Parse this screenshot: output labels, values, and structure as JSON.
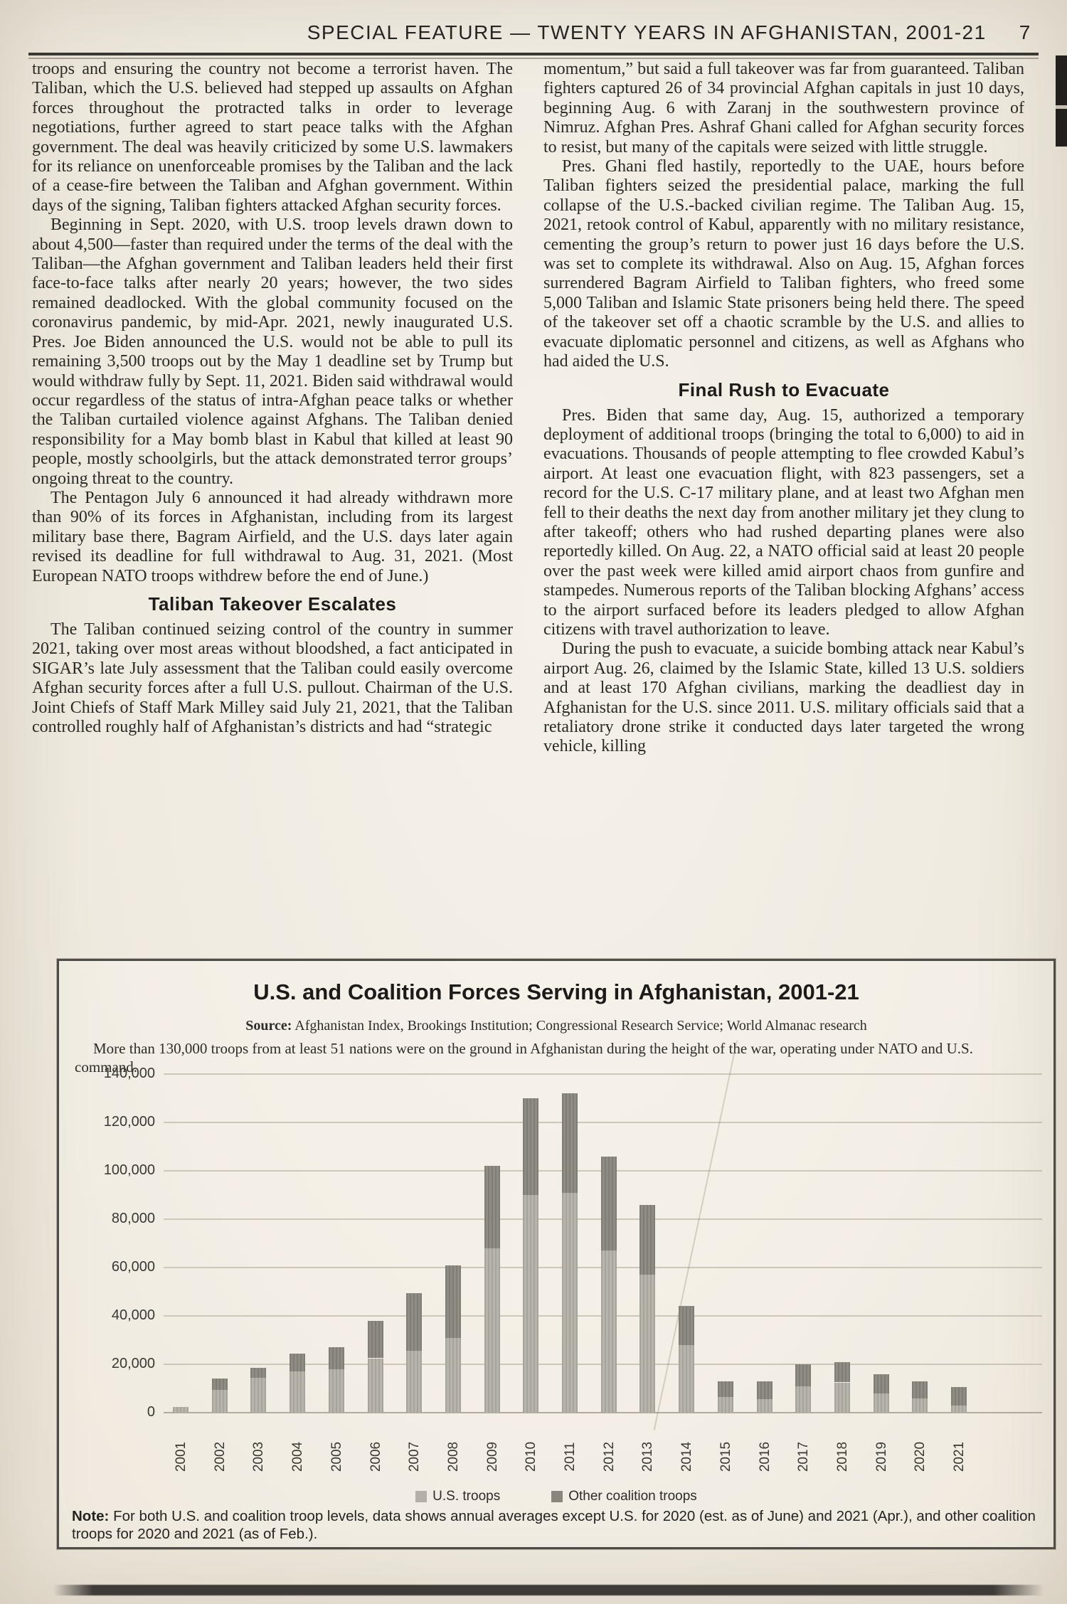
{
  "header": {
    "title": "SPECIAL FEATURE — TWENTY YEARS IN AFGHANISTAN, 2001-21",
    "page_number": "7"
  },
  "columns": {
    "left": {
      "paragraphs": [
        "troops and ensuring the country not become a terrorist haven. The Taliban, which the U.S. believed had stepped up assaults on Afghan forces throughout the protracted talks in order to leverage negotiations, further agreed to start peace talks with the Afghan government. The deal was heavily criticized by some U.S. lawmakers for its reliance on unenforceable promises by the Taliban and the lack of a cease-fire between the Taliban and Afghan government. Within days of the signing, Taliban fighters attacked Afghan security forces.",
        "Beginning in Sept. 2020, with U.S. troop levels drawn down to about 4,500—faster than required under the terms of the deal with the Taliban—the Afghan government and Taliban leaders held their first face-to-face talks after nearly 20 years; however, the two sides remained deadlocked. With the global community focused on the coronavirus pandemic, by mid-Apr. 2021, newly inaugurated U.S. Pres. Joe Biden announced the U.S. would not be able to pull its remaining 3,500 troops out by the May 1 deadline set by Trump but would withdraw fully by Sept. 11, 2021. Biden said withdrawal would occur regardless of the status of intra-Afghan peace talks or whether the Taliban curtailed violence against Afghans. The Taliban denied responsibility for a May bomb blast in Kabul that killed at least 90 people, mostly schoolgirls, but the attack demonstrated terror groups’ ongoing threat to the country.",
        "The Pentagon July 6 announced it had already withdrawn more than 90% of its forces in Afghanistan, including from its largest military base there, Bagram Airfield, and the U.S. days later again revised its deadline for full withdrawal to Aug. 31, 2021. (Most European NATO troops withdrew before the end of June.)",
        "The Taliban continued seizing control of the country in summer 2021, taking over most areas without bloodshed, a fact anticipated in SIGAR’s late July assessment that the Taliban could easily overcome Afghan security forces after a full U.S. pullout. Chairman of the U.S. Joint Chiefs of Staff Mark Milley said July 21, 2021, that the Taliban controlled roughly half of Afghanistan’s districts and had “strategic"
      ],
      "heading": "Taliban Takeover Escalates"
    },
    "right": {
      "paragraphs": [
        "momentum,” but said a full takeover was far from guaranteed. Taliban fighters captured 26 of 34 provincial Afghan capitals in just 10 days, beginning Aug. 6 with Zaranj in the southwestern province of Nimruz. Afghan Pres. Ashraf Ghani called for Afghan security forces to resist, but many of the capitals were seized with little struggle.",
        "Pres. Ghani fled hastily, reportedly to the UAE, hours before Taliban fighters seized the presidential palace, marking the full collapse of the U.S.-backed civilian regime. The Taliban Aug. 15, 2021, retook control of Kabul, apparently with no military resistance, cementing the group’s return to power just 16 days before the U.S. was set to complete its withdrawal. Also on Aug. 15, Afghan forces surrendered Bagram Airfield to Taliban fighters, who freed some 5,000 Taliban and Islamic State prisoners being held there. The speed of the takeover set off a chaotic scramble by the U.S. and allies to evacuate diplomatic personnel and citizens, as well as Afghans who had aided the U.S.",
        "Pres. Biden that same day, Aug. 15, authorized a temporary deployment of additional troops (bringing the total to 6,000) to aid in evacuations. Thousands of people attempting to flee crowded Kabul’s airport. At least one evacuation flight, with 823 passengers, set a record for the U.S. C-17 military plane, and at least two Afghan men fell to their deaths the next day from another military jet they clung to after takeoff; others who had rushed departing planes were also reportedly killed. On Aug. 22, a NATO official said at least 20 people over the past week were killed amid airport chaos from gunfire and stampedes. Numerous reports of the Taliban blocking Afghans’ access to the airport surfaced before its leaders pledged to allow Afghan citizens with travel authorization to leave.",
        "During the push to evacuate, a suicide bombing attack near Kabul’s airport Aug. 26, claimed by the Islamic State, killed 13 U.S. soldiers and at least 170 Afghan civilians, marking the deadliest day in Afghanistan for the U.S. since 2011. U.S. military officials said that a retaliatory drone strike it conducted days later targeted the wrong vehicle, killing"
      ],
      "heading": "Final Rush to Evacuate"
    }
  },
  "chart": {
    "title": "U.S. and Coalition Forces Serving in Afghanistan, 2001-21",
    "source_label": "Source:",
    "source": "Afghanistan Index, Brookings Institution; Congressional Research Service; World Almanac research",
    "subtitle": "More than 130,000 troops from at least 51 nations were on the ground in Afghanistan during the height of the war, operating under NATO and U.S. command.",
    "note_label": "Note:",
    "note": "For both U.S. and coalition troop levels, data shows annual averages except U.S. for 2020 (est. as of June) and 2021 (Apr.), and other coalition troops for 2020 and 2021 (as of Feb.)."
  },
  "chart_data": {
    "type": "bar",
    "stacked": true,
    "title": "U.S. and Coalition Forces Serving in Afghanistan, 2001-21",
    "categories": [
      "2001",
      "2002",
      "2003",
      "2004",
      "2005",
      "2006",
      "2007",
      "2008",
      "2009",
      "2010",
      "2011",
      "2012",
      "2013",
      "2014",
      "2015",
      "2016",
      "2017",
      "2018",
      "2019",
      "2020",
      "2021"
    ],
    "series": [
      {
        "name": "U.S. troops",
        "color": "#b4b0a7",
        "values": [
          2500,
          9500,
          14500,
          17000,
          18000,
          22500,
          25500,
          31000,
          68000,
          90000,
          91000,
          67000,
          57000,
          28000,
          6500,
          5500,
          11000,
          12500,
          8000,
          6000,
          3000
        ]
      },
      {
        "name": "Other coalition troops",
        "color": "#8a867e",
        "values": [
          0,
          4500,
          4000,
          7500,
          9000,
          15500,
          24000,
          30000,
          34000,
          40000,
          41000,
          39000,
          29000,
          16000,
          6500,
          7500,
          9000,
          8500,
          8000,
          7000,
          7500
        ]
      }
    ],
    "xlabel": "",
    "ylabel": "",
    "ylim": [
      0,
      140000
    ],
    "ytick_interval": 20000,
    "ytick_labels": [
      "0",
      "20,000",
      "40,000",
      "60,000",
      "80,000",
      "100,000",
      "120,000",
      "140,000"
    ],
    "grid": true,
    "legend_position": "bottom"
  }
}
